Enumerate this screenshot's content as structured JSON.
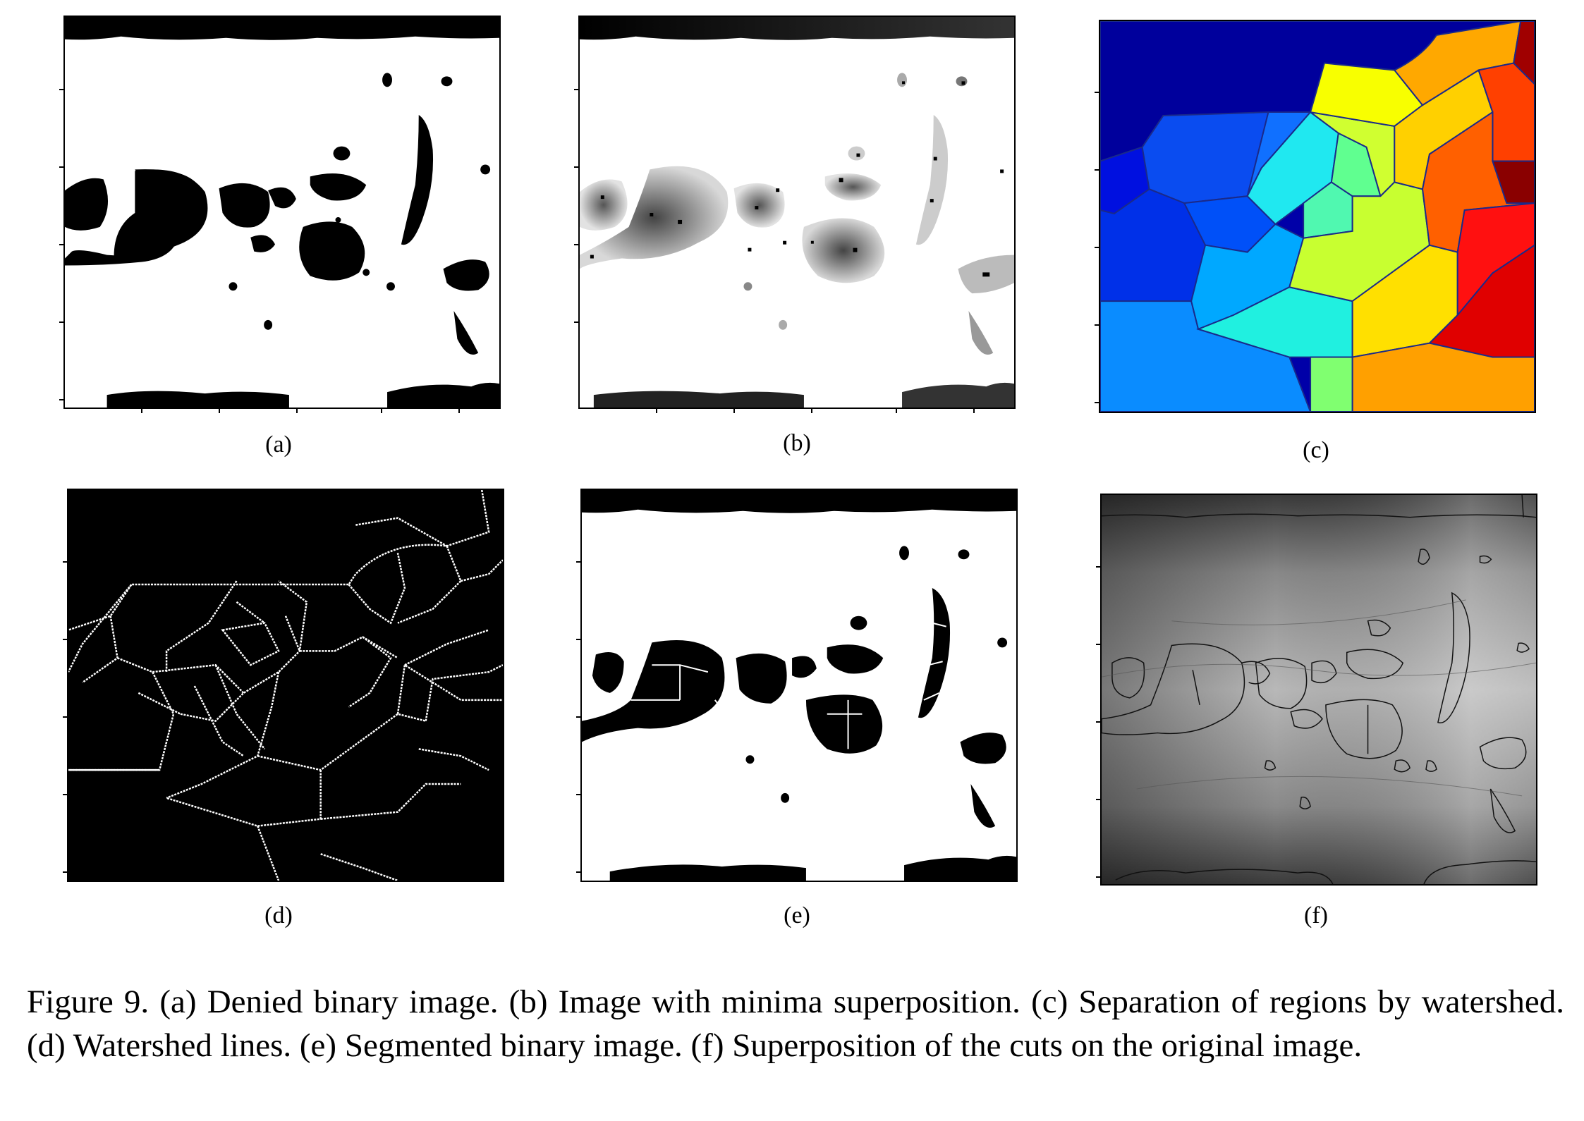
{
  "panels": [
    {
      "id": "a",
      "label": "(a)"
    },
    {
      "id": "b",
      "label": "(b)"
    },
    {
      "id": "c",
      "label": "(c)"
    },
    {
      "id": "d",
      "label": "(d)"
    },
    {
      "id": "e",
      "label": "(e)"
    },
    {
      "id": "f",
      "label": "(f)"
    }
  ],
  "caption": "Figure 9. (a) Denied binary image. (b) Image with minima superposition. (c) Separation of regions by watershed. (d) Watershed lines. (e) Segmented binary image. (f) Superposition of the cuts on the original image.",
  "colors": {
    "binary_fg": "#000000",
    "binary_bg": "#ffffff",
    "watershed_line": "#ffffff",
    "region_border": "#1a2a8a"
  }
}
